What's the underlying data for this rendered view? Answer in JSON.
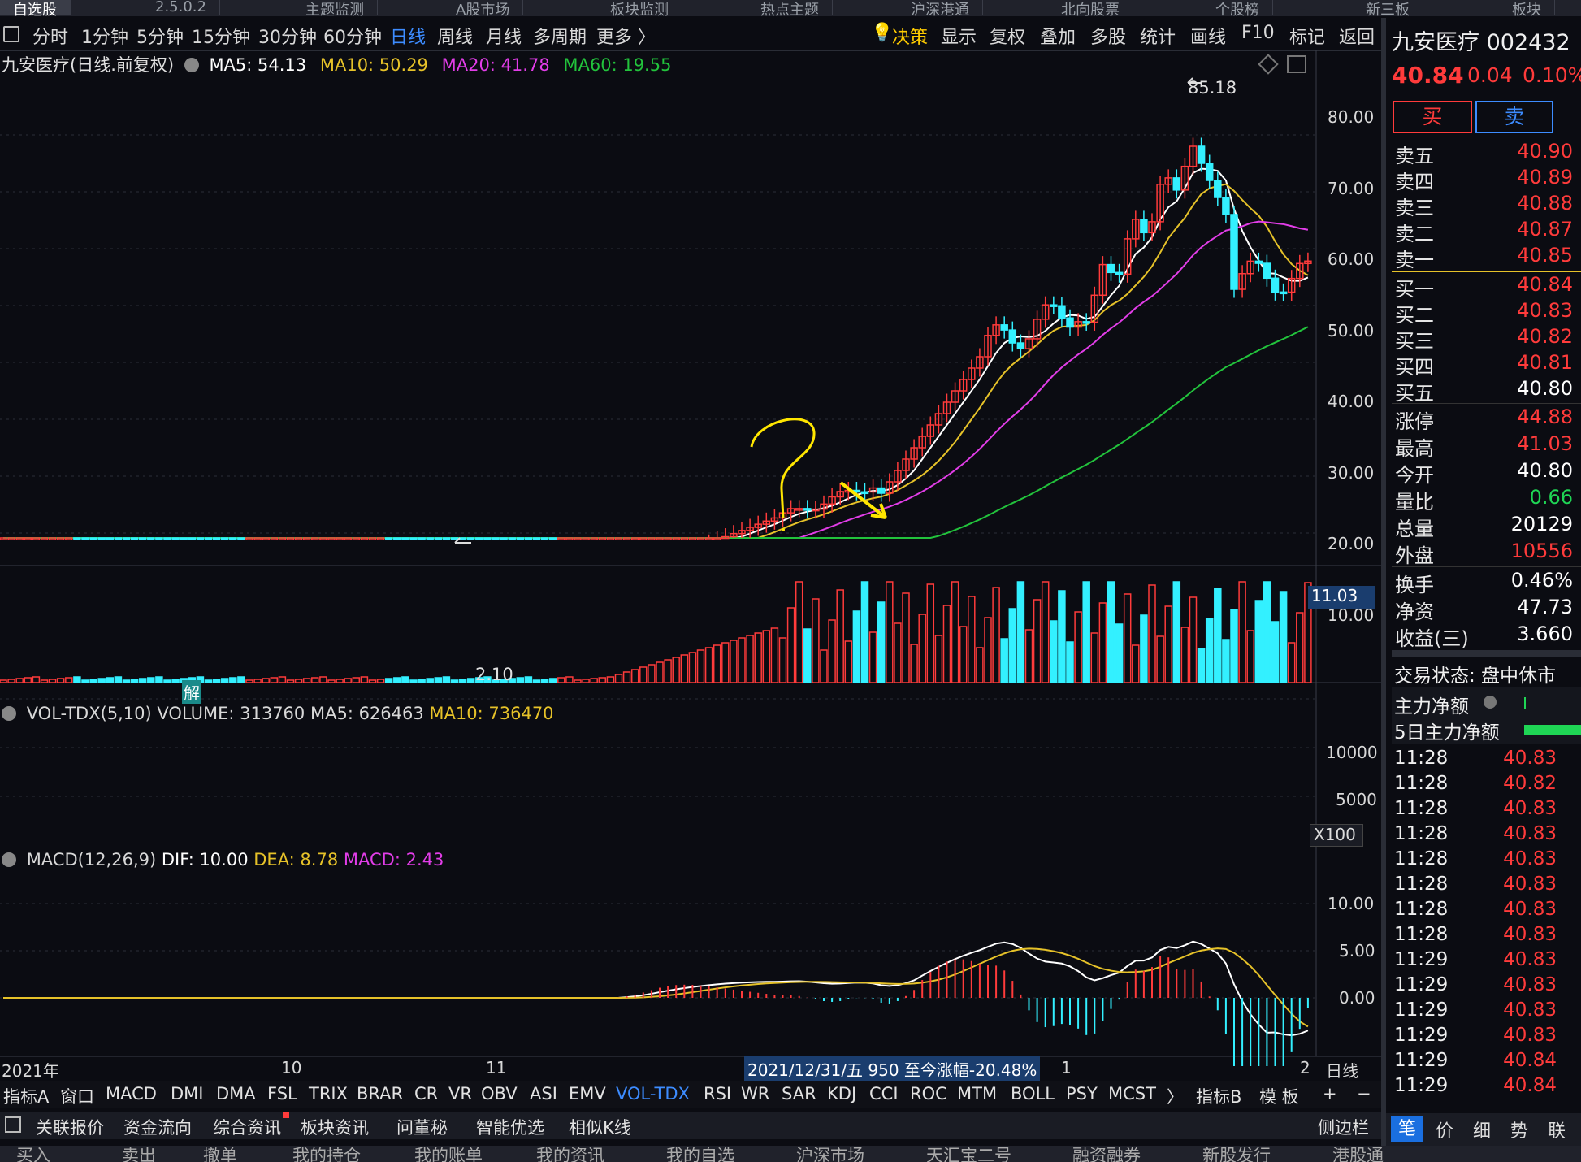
{
  "top_tabs": [
    "自选股",
    "2.5.0.2",
    "主题监测",
    "A股市场",
    "板块监测",
    "热点主题",
    "沪深港通",
    "北向股票",
    "个股榜",
    "新三板",
    "板块"
  ],
  "period_bar": {
    "items": [
      "分时",
      "1分钟",
      "5分钟",
      "15分钟",
      "30分钟",
      "60分钟",
      "日线",
      "周线",
      "月线",
      "多周期",
      "更多 〉"
    ],
    "active": "日线",
    "right_items": [
      "决策",
      "显示",
      "复权",
      "叠加",
      "多股",
      "统计",
      "画线",
      "F10",
      "标记",
      "返回"
    ]
  },
  "price_panel": {
    "title": "九安医疗(日线.前复权)",
    "ma5": "MA5: 54.13",
    "ma10": "MA10: 50.29",
    "ma20": "MA20: 41.78",
    "ma60": "MA60: 19.55",
    "y_ticks": [
      "80.00",
      "70.00",
      "60.00",
      "50.00",
      "40.00",
      "30.00",
      "20.00",
      "10.00"
    ],
    "current_price_tag": "11.03",
    "high_label": "85.18",
    "low_label": "2.10",
    "unlock_label": "解",
    "colors": {
      "ma5": "#ffffff",
      "ma10": "#e6c229",
      "ma20": "#e23de8",
      "ma60": "#22c33c",
      "up": "#ff3b3b",
      "down": "#33f0ff",
      "annotation": "#ffe600"
    }
  },
  "volume_panel": {
    "title": "VOL-TDX(5,10)",
    "volume": "VOLUME: 313760",
    "ma5": "MA5: 626463",
    "ma10": "MA10: 736470",
    "y_ticks": [
      "10000",
      "5000"
    ],
    "unit": "X100"
  },
  "macd_panel": {
    "title": "MACD(12,26,9)",
    "dif": "DIF: 10.00",
    "dea": "DEA: 8.78",
    "macd": "MACD: 2.43",
    "y_ticks": [
      "10.00",
      "5.00",
      "0.00"
    ]
  },
  "x_axis": {
    "labels": [
      "2021年",
      "10",
      "11",
      "1",
      "2"
    ],
    "cursor_info": "2021/12/31/五 950 至今涨幅-20.48%",
    "period_label": "日线"
  },
  "indicator_bar": {
    "items": [
      "指标A",
      "窗口",
      "MACD",
      "DMI",
      "DMA",
      "FSL",
      "TRIX",
      "BRAR",
      "CR",
      "VR",
      "OBV",
      "ASI",
      "EMV",
      "VOL-TDX",
      "RSI",
      "WR",
      "SAR",
      "KDJ",
      "CCI",
      "ROC",
      "MTM",
      "BOLL",
      "PSY",
      "MCST",
      "〉",
      "指标B",
      "模 板",
      "+",
      "−"
    ],
    "active": "VOL-TDX"
  },
  "info_bar": {
    "items": [
      "关联报价",
      "资金流向",
      "综合资讯",
      "板块资讯",
      "问董秘",
      "智能优选",
      "相似K线"
    ],
    "right": "侧边栏"
  },
  "footer_bar": {
    "items": [
      "买入",
      "卖出",
      "撤单",
      "我的持仓",
      "我的账单",
      "我的资讯",
      "我的自选",
      "沪深市场",
      "天汇宝二号",
      "融资融券",
      "新股发行",
      "港股通"
    ]
  },
  "quote_panel": {
    "stock": "九安医疗 002432",
    "price": "40.84",
    "change": "0.04",
    "change_pct": "0.10%",
    "buy_btn": "买",
    "sell_btn": "卖",
    "asks": [
      {
        "label": "卖五",
        "price": "40.90"
      },
      {
        "label": "卖四",
        "price": "40.89"
      },
      {
        "label": "卖三",
        "price": "40.88"
      },
      {
        "label": "卖二",
        "price": "40.87"
      },
      {
        "label": "卖一",
        "price": "40.85"
      }
    ],
    "bids": [
      {
        "label": "买一",
        "price": "40.84"
      },
      {
        "label": "买二",
        "price": "40.83"
      },
      {
        "label": "买三",
        "price": "40.82"
      },
      {
        "label": "买四",
        "price": "40.81"
      },
      {
        "label": "买五",
        "price": "40.80"
      }
    ],
    "stats": [
      {
        "label": "涨停",
        "value": "44.88",
        "color": "red"
      },
      {
        "label": "最高",
        "value": "41.03",
        "color": "red"
      },
      {
        "label": "今开",
        "value": "40.80",
        "color": "white"
      },
      {
        "label": "量比",
        "value": "0.66",
        "color": "green"
      },
      {
        "label": "总量",
        "value": "20129",
        "color": "white"
      },
      {
        "label": "外盘",
        "value": "10556",
        "color": "red"
      },
      {
        "label": "换手",
        "value": "0.46%",
        "color": "white"
      },
      {
        "label": "净资",
        "value": "47.73",
        "color": "white"
      },
      {
        "label": "收益(三)",
        "value": "3.660",
        "color": "white"
      }
    ],
    "trade_status": "交易状态: 盘中休市",
    "main_flow": "主力净额",
    "main_flow_5d": "5日主力净额",
    "ticks": [
      {
        "t": "11:28",
        "p": "40.83"
      },
      {
        "t": "11:28",
        "p": "40.82"
      },
      {
        "t": "11:28",
        "p": "40.83"
      },
      {
        "t": "11:28",
        "p": "40.83"
      },
      {
        "t": "11:28",
        "p": "40.83"
      },
      {
        "t": "11:28",
        "p": "40.83"
      },
      {
        "t": "11:28",
        "p": "40.83"
      },
      {
        "t": "11:28",
        "p": "40.83"
      },
      {
        "t": "11:29",
        "p": "40.83"
      },
      {
        "t": "11:29",
        "p": "40.83"
      },
      {
        "t": "11:29",
        "p": "40.83"
      },
      {
        "t": "11:29",
        "p": "40.83"
      },
      {
        "t": "11:29",
        "p": "40.84"
      },
      {
        "t": "11:29",
        "p": "40.84"
      }
    ],
    "bottom_tabs": [
      "笔",
      "价",
      "细",
      "势",
      "联"
    ]
  }
}
